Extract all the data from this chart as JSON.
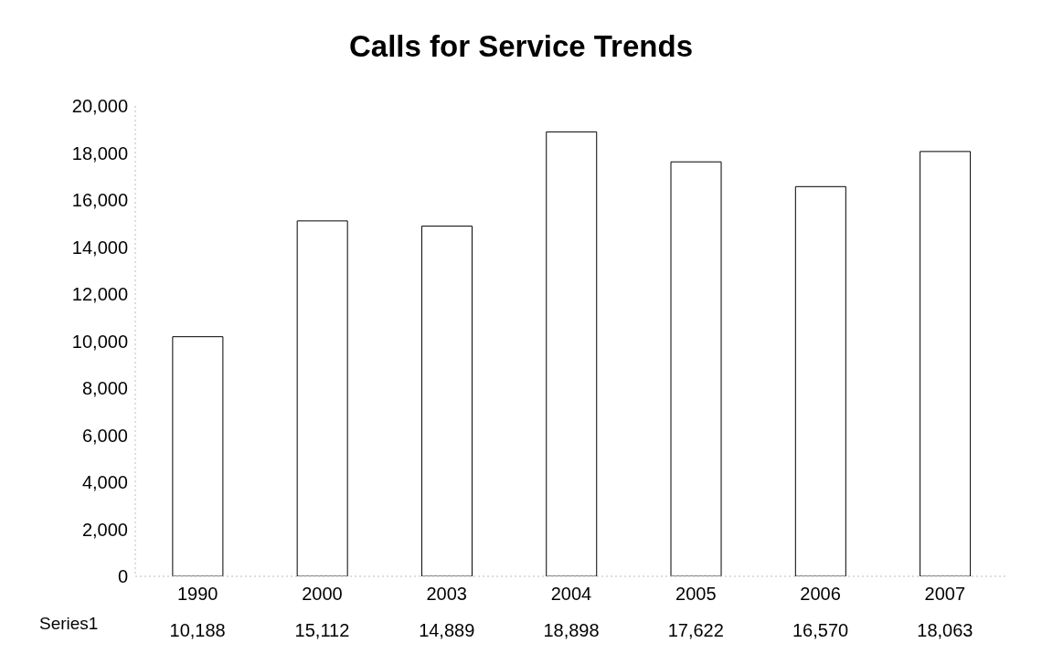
{
  "chart_data": {
    "type": "bar",
    "title": "Calls for Service Trends",
    "categories": [
      "1990",
      "2000",
      "2003",
      "2004",
      "2005",
      "2006",
      "2007"
    ],
    "series": [
      {
        "name": "Series1",
        "color": "#ffffff",
        "values": [
          10188,
          15112,
          14889,
          18898,
          17622,
          16570,
          18063
        ],
        "value_labels": [
          "10,188",
          "15,112",
          "14,889",
          "18,898",
          "17,622",
          "16,570",
          "18,063"
        ]
      }
    ],
    "ylim": [
      0,
      20000
    ],
    "yticks": [
      {
        "value": 0,
        "label": "0"
      },
      {
        "value": 2000,
        "label": "2,000"
      },
      {
        "value": 4000,
        "label": "4,000"
      },
      {
        "value": 6000,
        "label": "6,000"
      },
      {
        "value": 8000,
        "label": "8,000"
      },
      {
        "value": 10000,
        "label": "10,000"
      },
      {
        "value": 12000,
        "label": "12,000"
      },
      {
        "value": 14000,
        "label": "14,000"
      },
      {
        "value": 16000,
        "label": "16,000"
      },
      {
        "value": 18000,
        "label": "18,000"
      },
      {
        "value": 20000,
        "label": "20,000"
      }
    ],
    "grid": false
  }
}
